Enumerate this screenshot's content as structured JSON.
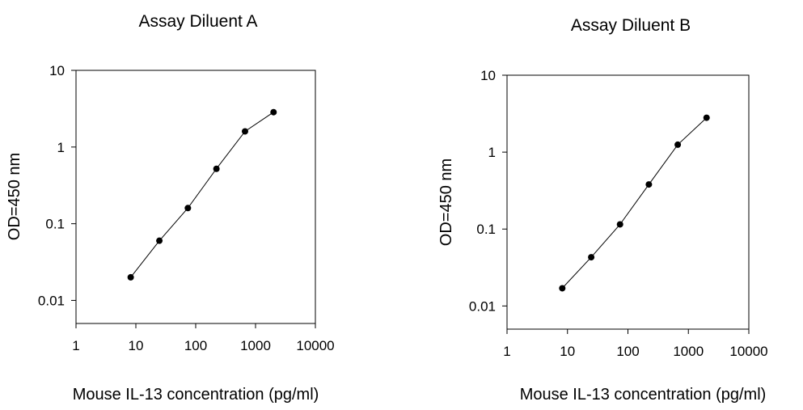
{
  "chart_data": [
    {
      "type": "line",
      "title": "Assay Diluent A",
      "xlabel": "Mouse IL-13 concentration (pg/ml)",
      "ylabel": "OD=450 nm",
      "xscale": "log",
      "yscale": "log",
      "xlim": [
        1,
        10000
      ],
      "ylim": [
        0.005,
        10
      ],
      "xticks": [
        1,
        10,
        100,
        1000,
        10000
      ],
      "xtick_labels": [
        "1",
        "10",
        "100",
        "1000",
        "10000"
      ],
      "yticks": [
        0.01,
        0.1,
        1,
        10
      ],
      "ytick_labels": [
        "0.01",
        "0.1",
        "1",
        "10"
      ],
      "grid": false,
      "series": [
        {
          "x": [
            8.2,
            24.7,
            74,
            222,
            667,
            2000
          ],
          "y": [
            0.02,
            0.06,
            0.16,
            0.52,
            1.6,
            2.85
          ]
        }
      ]
    },
    {
      "type": "line",
      "title": "Assay Diluent B",
      "xlabel": "Mouse IL-13 concentration (pg/ml)",
      "ylabel": "OD=450 nm",
      "xscale": "log",
      "yscale": "log",
      "xlim": [
        1,
        10000
      ],
      "ylim": [
        0.005,
        10
      ],
      "xticks": [
        1,
        10,
        100,
        1000,
        10000
      ],
      "xtick_labels": [
        "1",
        "10",
        "100",
        "1000",
        "10000"
      ],
      "yticks": [
        0.01,
        0.1,
        1,
        10
      ],
      "ytick_labels": [
        "0.01",
        "0.1",
        "1",
        "10"
      ],
      "grid": false,
      "series": [
        {
          "x": [
            8.2,
            24.7,
            74,
            222,
            667,
            2000
          ],
          "y": [
            0.017,
            0.043,
            0.115,
            0.38,
            1.25,
            2.8
          ]
        }
      ]
    }
  ]
}
